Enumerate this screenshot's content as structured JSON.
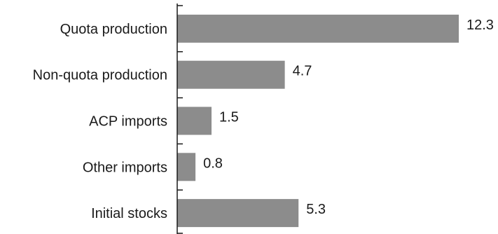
{
  "chart_data": {
    "type": "bar",
    "orientation": "horizontal",
    "categories": [
      "Quota production",
      "Non-quota production",
      "ACP imports",
      "Other imports",
      "Initial stocks"
    ],
    "values": [
      12.3,
      4.7,
      1.5,
      0.8,
      5.3
    ],
    "value_labels": [
      "12.3",
      "4.7",
      "1.5",
      "0.8",
      "5.3"
    ],
    "title": "",
    "xlabel": "",
    "ylabel": "",
    "xlim": [
      0,
      12.3
    ],
    "grid": false,
    "bar_color": "#8c8c8c",
    "text_color": "#1a1a1a"
  }
}
